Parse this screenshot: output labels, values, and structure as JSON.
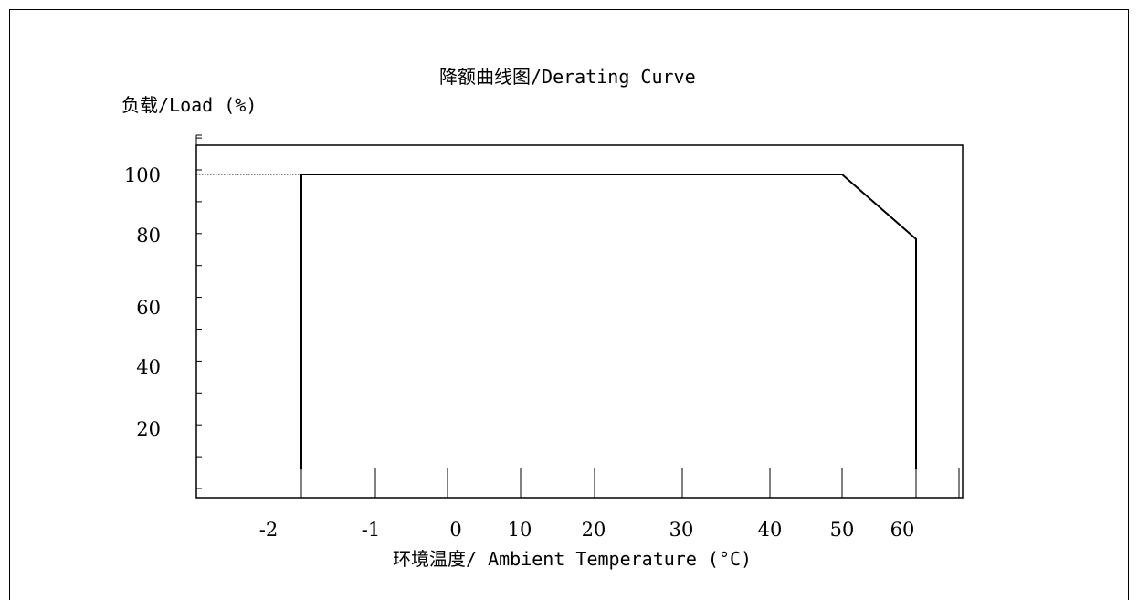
{
  "chart_data": {
    "type": "line",
    "title": "降额曲线图/Derating Curve",
    "ylabel": "负载/Load (%)",
    "xlabel": "环境温度/ Ambient Temperature (°C)",
    "x_tick_labels": [
      "-2",
      "-1",
      "0",
      "10",
      "20",
      "30",
      "40",
      "50",
      "60"
    ],
    "y_tick_labels": [
      "100",
      "80",
      "60",
      "40",
      "20"
    ],
    "ylim": [
      0,
      110
    ],
    "grid": false,
    "series": [
      {
        "x": [
          -25,
          -25,
          50,
          60,
          60
        ],
        "y": [
          0,
          100,
          100,
          80,
          0
        ]
      }
    ],
    "reference_line": {
      "y": 100
    },
    "colors": {
      "line": "#000000",
      "axis": "#000000"
    }
  }
}
